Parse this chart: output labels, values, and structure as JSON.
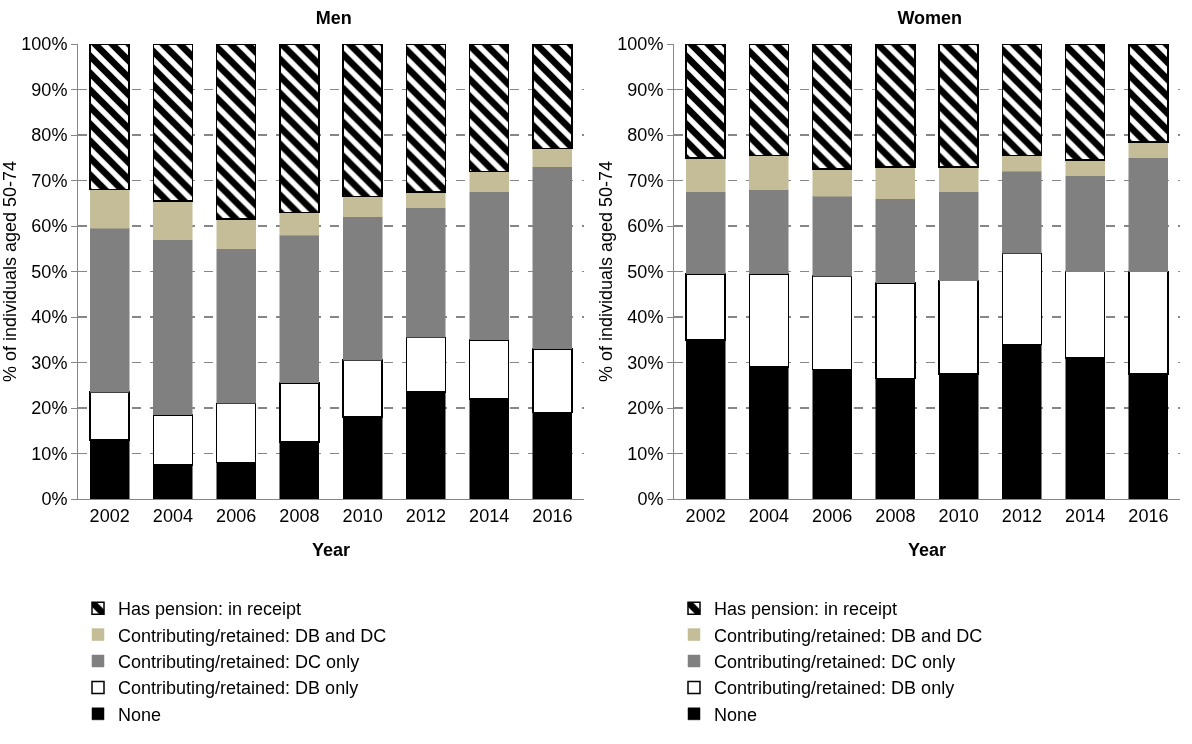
{
  "chart_data": [
    {
      "type": "bar",
      "title": "Men",
      "xlabel": "Year",
      "ylabel": "% of individuals aged 50-74",
      "stacked": true,
      "grid": "y",
      "legend": "bottom",
      "ylim": [
        0,
        100
      ],
      "yticks": [
        {
          "value": 0,
          "label": "0%"
        },
        {
          "value": 10,
          "label": "10%"
        },
        {
          "value": 20,
          "label": "20%"
        },
        {
          "value": 30,
          "label": "30%"
        },
        {
          "value": 40,
          "label": "40%"
        },
        {
          "value": 50,
          "label": "50%"
        },
        {
          "value": 60,
          "label": "60%"
        },
        {
          "value": 70,
          "label": "70%"
        },
        {
          "value": 80,
          "label": "80%"
        },
        {
          "value": 90,
          "label": "90%"
        },
        {
          "value": 100,
          "label": "100%"
        }
      ],
      "categories": [
        "2002",
        "2004",
        "2006",
        "2008",
        "2010",
        "2012",
        "2014",
        "2016"
      ],
      "series": [
        {
          "name": "None",
          "color": "#000000",
          "values": [
            13,
            7.5,
            8,
            12.5,
            18,
            23.5,
            22,
            19
          ]
        },
        {
          "name": "Contributing/retained: DB only",
          "color": "#ffffff",
          "values": [
            10.5,
            11,
            13,
            13,
            12.5,
            12,
            13,
            14
          ]
        },
        {
          "name": "Contributing/retained: DC only",
          "color": "#808080",
          "values": [
            36,
            38.5,
            34,
            32.5,
            31.5,
            28.5,
            32.5,
            40
          ]
        },
        {
          "name": "Contributing/retained: DB and DC",
          "color": "#c4bd97",
          "values": [
            8.5,
            8.5,
            6.5,
            5,
            4.5,
            3.5,
            4.5,
            4
          ]
        },
        {
          "name": "Has pension: in receipt",
          "color": "#000000",
          "values": [
            32,
            34.5,
            38.5,
            37,
            33.5,
            32.5,
            28,
            23
          ]
        }
      ]
    },
    {
      "type": "bar",
      "title": "Women",
      "xlabel": "Year",
      "ylabel": "% of individuals aged 50-74",
      "stacked": true,
      "grid": "y",
      "legend": "bottom",
      "ylim": [
        0,
        100
      ],
      "yticks": [
        {
          "value": 0,
          "label": "0%"
        },
        {
          "value": 10,
          "label": "10%"
        },
        {
          "value": 20,
          "label": "20%"
        },
        {
          "value": 30,
          "label": "30%"
        },
        {
          "value": 40,
          "label": "40%"
        },
        {
          "value": 50,
          "label": "50%"
        },
        {
          "value": 60,
          "label": "60%"
        },
        {
          "value": 70,
          "label": "70%"
        },
        {
          "value": 80,
          "label": "80%"
        },
        {
          "value": 90,
          "label": "90%"
        },
        {
          "value": 100,
          "label": "100%"
        }
      ],
      "categories": [
        "2002",
        "2004",
        "2006",
        "2008",
        "2010",
        "2012",
        "2014",
        "2016"
      ],
      "series": [
        {
          "name": "None",
          "color": "#000000",
          "values": [
            35,
            29,
            28.5,
            26.5,
            27.5,
            34,
            31,
            27.5
          ]
        },
        {
          "name": "Contributing/retained: DB only",
          "color": "#ffffff",
          "values": [
            14.5,
            20.5,
            20.5,
            21,
            20.5,
            20,
            19,
            22.5
          ]
        },
        {
          "name": "Contributing/retained: DC only",
          "color": "#808080",
          "values": [
            18,
            18.5,
            17.5,
            18.5,
            19.5,
            18,
            21,
            25
          ]
        },
        {
          "name": "Contributing/retained: DB and DC",
          "color": "#c4bd97",
          "values": [
            7.5,
            7.5,
            6,
            7,
            5.5,
            3.5,
            3.5,
            3.5
          ]
        },
        {
          "name": "Has pension: in receipt",
          "color": "#000000",
          "values": [
            25,
            24.5,
            27.5,
            27,
            27,
            24.5,
            25.5,
            21.5
          ]
        }
      ]
    }
  ]
}
